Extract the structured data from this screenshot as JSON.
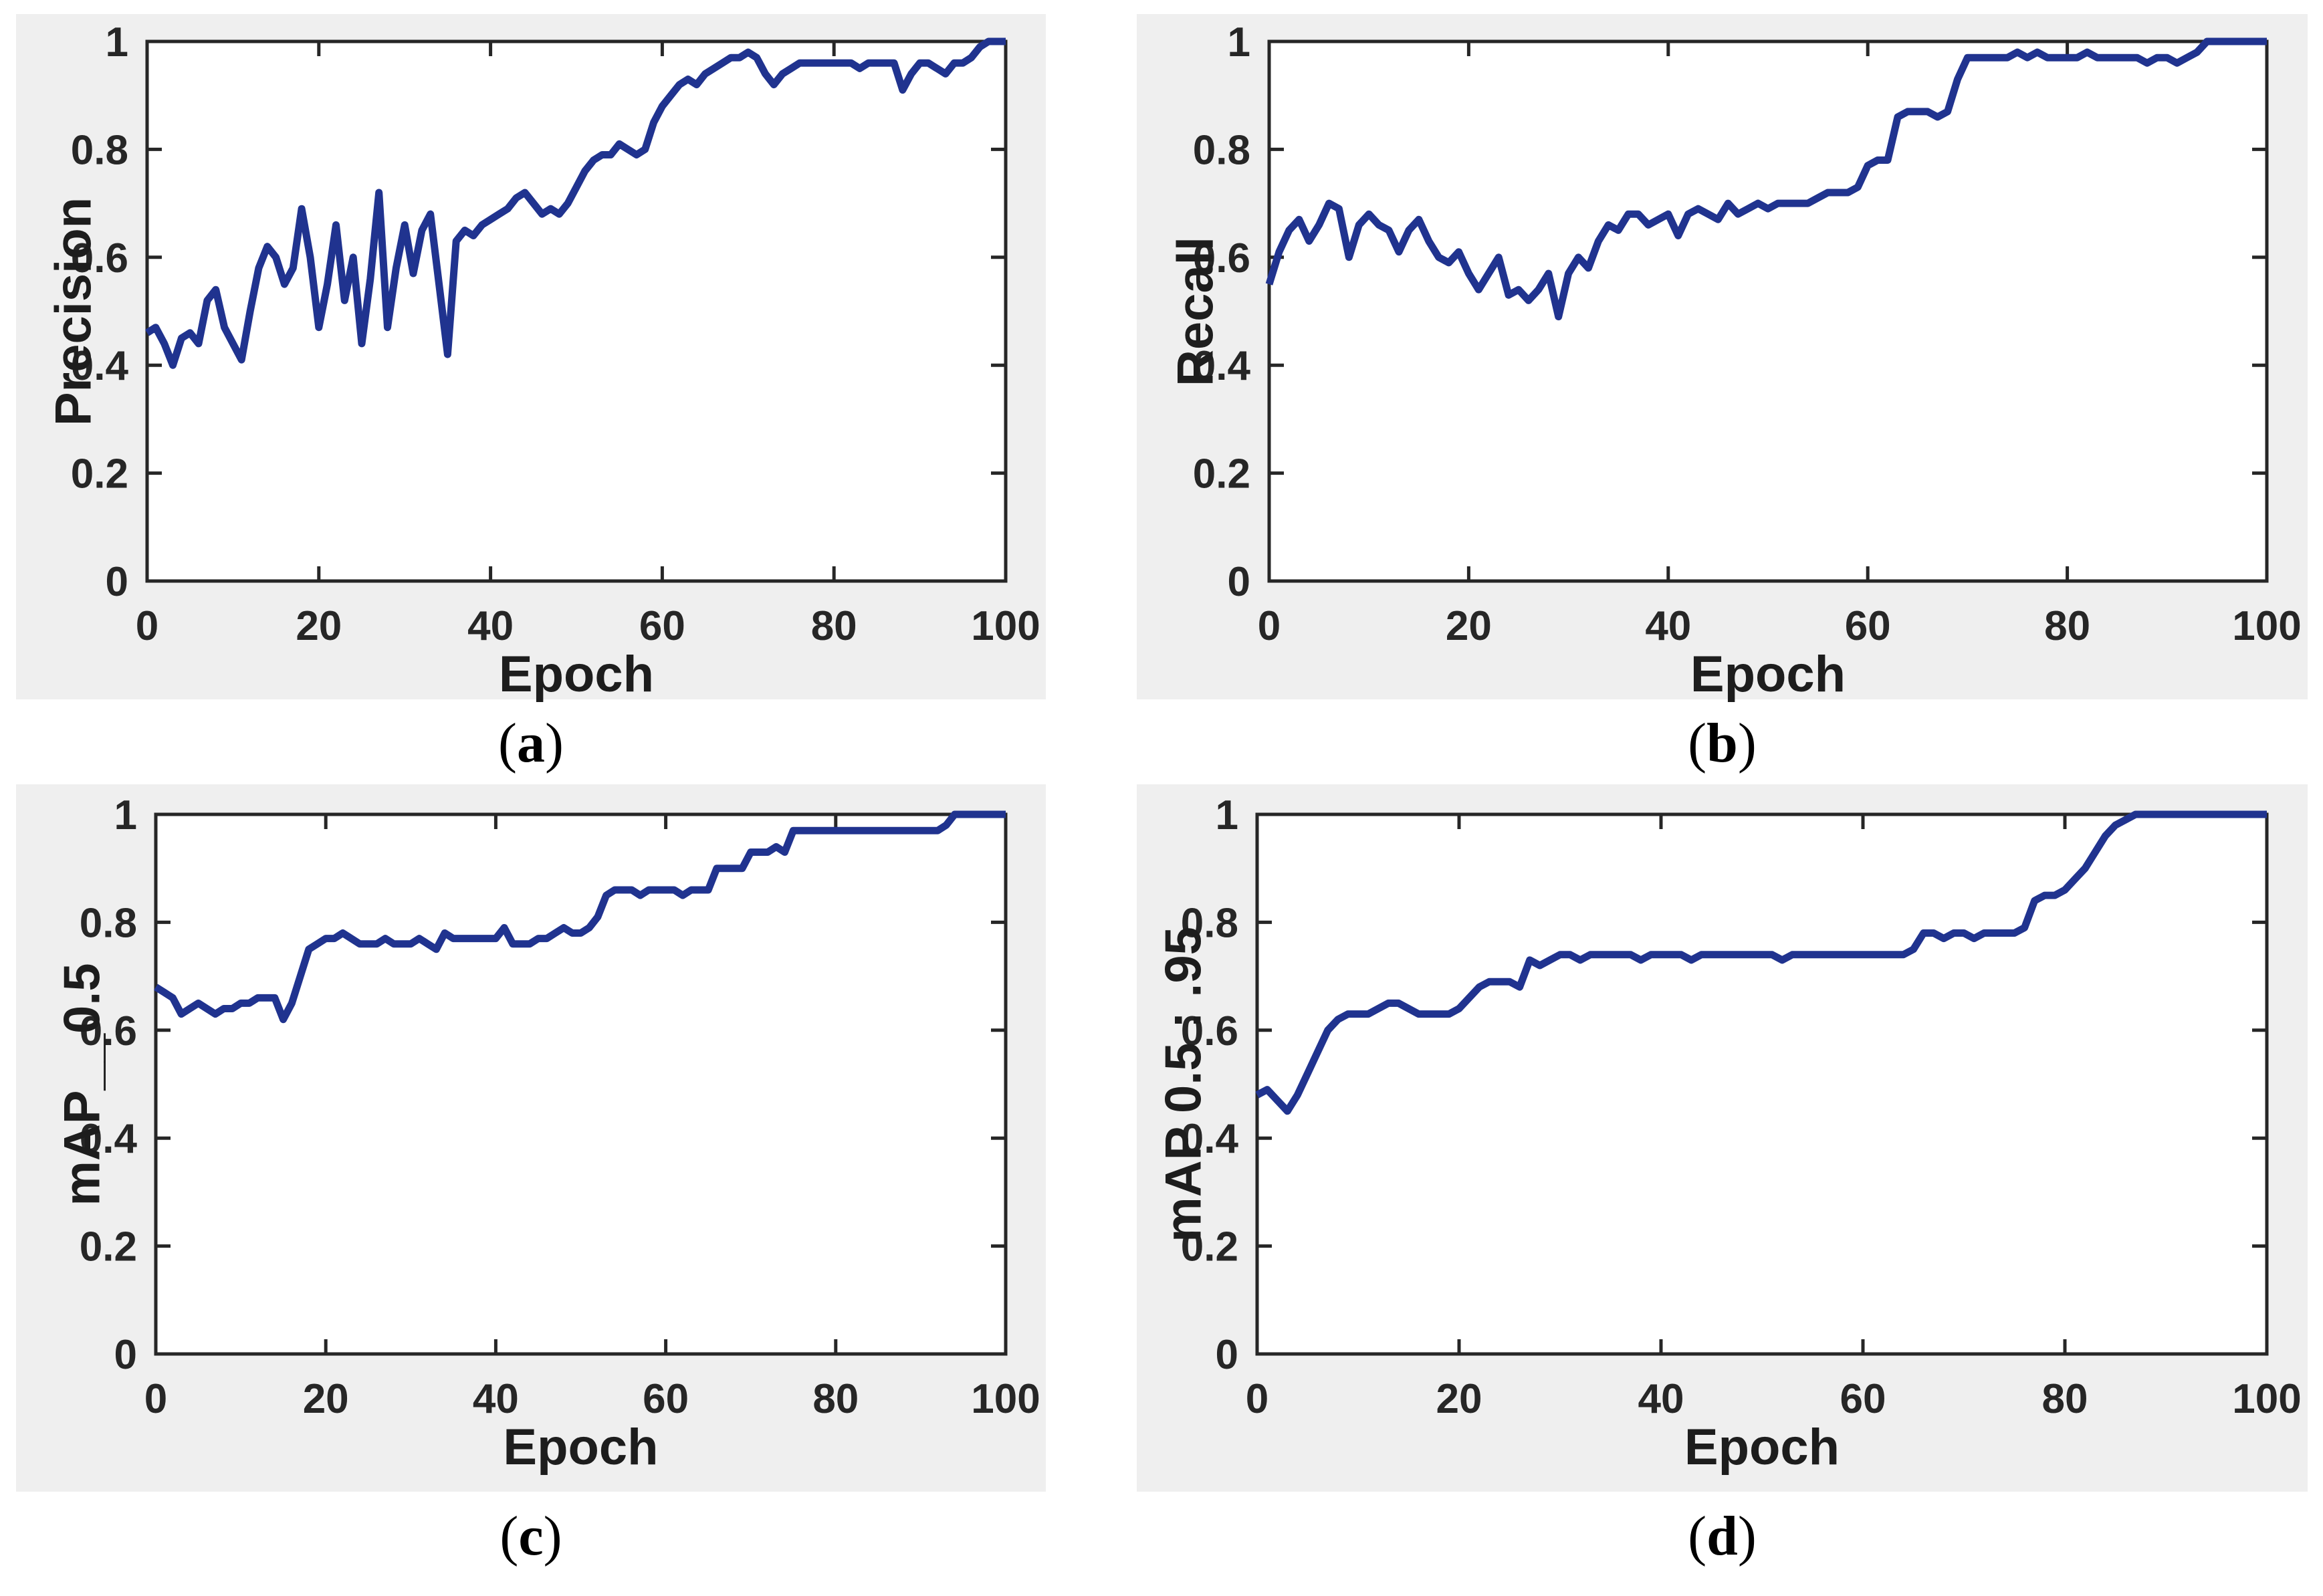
{
  "style": {
    "page_background": "#ffffff",
    "panel_background": "#efefef",
    "plot_background": "#ffffff",
    "axis_color": "#262626",
    "tick_label_color": "#262626",
    "line_color": "#20338f"
  },
  "chart_data": [
    {
      "id": "precision",
      "type": "line",
      "title": "",
      "xlabel": "Epoch",
      "ylabel": "Precision",
      "caption": {
        "open": "(",
        "letter": "a",
        "close": ")"
      },
      "xlim": [
        0,
        100
      ],
      "ylim": [
        0,
        1
      ],
      "xticks": [
        0,
        20,
        40,
        60,
        80,
        100
      ],
      "yticks": [
        0,
        0.2,
        0.4,
        0.6,
        0.8,
        1
      ],
      "grid": false,
      "legend": null,
      "x_start": 0,
      "x_step": 1,
      "values": [
        0.46,
        0.47,
        0.44,
        0.4,
        0.45,
        0.46,
        0.44,
        0.52,
        0.54,
        0.47,
        0.44,
        0.41,
        0.5,
        0.58,
        0.62,
        0.6,
        0.55,
        0.58,
        0.69,
        0.6,
        0.47,
        0.55,
        0.66,
        0.52,
        0.6,
        0.44,
        0.56,
        0.72,
        0.47,
        0.58,
        0.66,
        0.57,
        0.65,
        0.68,
        0.55,
        0.42,
        0.63,
        0.65,
        0.64,
        0.66,
        0.67,
        0.68,
        0.69,
        0.71,
        0.72,
        0.7,
        0.68,
        0.69,
        0.68,
        0.7,
        0.73,
        0.76,
        0.78,
        0.79,
        0.79,
        0.81,
        0.8,
        0.79,
        0.8,
        0.85,
        0.88,
        0.9,
        0.92,
        0.93,
        0.92,
        0.94,
        0.95,
        0.96,
        0.97,
        0.97,
        0.98,
        0.97,
        0.94,
        0.92,
        0.94,
        0.95,
        0.96,
        0.96,
        0.96,
        0.96,
        0.96,
        0.96,
        0.96,
        0.95,
        0.96,
        0.96,
        0.96,
        0.96,
        0.91,
        0.94,
        0.96,
        0.96,
        0.95,
        0.94,
        0.96,
        0.96,
        0.97,
        0.99,
        1.0,
        1.0,
        1.0
      ]
    },
    {
      "id": "recall",
      "type": "line",
      "title": "",
      "xlabel": "Epoch",
      "ylabel": "Recall",
      "caption": {
        "open": "(",
        "letter": "b",
        "close": ")"
      },
      "xlim": [
        0,
        100
      ],
      "ylim": [
        0,
        1
      ],
      "xticks": [
        0,
        20,
        40,
        60,
        80,
        100
      ],
      "yticks": [
        0,
        0.2,
        0.4,
        0.6,
        0.8,
        1
      ],
      "grid": false,
      "legend": null,
      "x_start": 0,
      "x_step": 1,
      "values": [
        0.55,
        0.61,
        0.65,
        0.67,
        0.63,
        0.66,
        0.7,
        0.69,
        0.6,
        0.66,
        0.68,
        0.66,
        0.65,
        0.61,
        0.65,
        0.67,
        0.63,
        0.6,
        0.59,
        0.61,
        0.57,
        0.54,
        0.57,
        0.6,
        0.53,
        0.54,
        0.52,
        0.54,
        0.57,
        0.49,
        0.57,
        0.6,
        0.58,
        0.63,
        0.66,
        0.65,
        0.68,
        0.68,
        0.66,
        0.67,
        0.68,
        0.64,
        0.68,
        0.69,
        0.68,
        0.67,
        0.7,
        0.68,
        0.69,
        0.7,
        0.69,
        0.7,
        0.7,
        0.7,
        0.7,
        0.71,
        0.72,
        0.72,
        0.72,
        0.73,
        0.77,
        0.78,
        0.78,
        0.86,
        0.87,
        0.87,
        0.87,
        0.86,
        0.87,
        0.93,
        0.97,
        0.97,
        0.97,
        0.97,
        0.97,
        0.98,
        0.97,
        0.98,
        0.97,
        0.97,
        0.97,
        0.97,
        0.98,
        0.97,
        0.97,
        0.97,
        0.97,
        0.97,
        0.96,
        0.97,
        0.97,
        0.96,
        0.97,
        0.98,
        1.0,
        1.0,
        1.0,
        1.0,
        1.0,
        1.0,
        1.0
      ]
    },
    {
      "id": "map_05",
      "type": "line",
      "title": "",
      "xlabel": "Epoch",
      "ylabel": "mAP__0.5",
      "caption": {
        "open": "(",
        "letter": "c",
        "close": ")"
      },
      "xlim": [
        0,
        100
      ],
      "ylim": [
        0,
        1
      ],
      "xticks": [
        0,
        20,
        40,
        60,
        80,
        100
      ],
      "yticks": [
        0,
        0.2,
        0.4,
        0.6,
        0.8,
        1
      ],
      "grid": false,
      "legend": null,
      "x_start": 0,
      "x_step": 1,
      "values": [
        0.68,
        0.67,
        0.66,
        0.63,
        0.64,
        0.65,
        0.64,
        0.63,
        0.64,
        0.64,
        0.65,
        0.65,
        0.66,
        0.66,
        0.66,
        0.62,
        0.65,
        0.7,
        0.75,
        0.76,
        0.77,
        0.77,
        0.78,
        0.77,
        0.76,
        0.76,
        0.76,
        0.77,
        0.76,
        0.76,
        0.76,
        0.77,
        0.76,
        0.75,
        0.78,
        0.77,
        0.77,
        0.77,
        0.77,
        0.77,
        0.77,
        0.79,
        0.76,
        0.76,
        0.76,
        0.77,
        0.77,
        0.78,
        0.79,
        0.78,
        0.78,
        0.79,
        0.81,
        0.85,
        0.86,
        0.86,
        0.86,
        0.85,
        0.86,
        0.86,
        0.86,
        0.86,
        0.85,
        0.86,
        0.86,
        0.86,
        0.9,
        0.9,
        0.9,
        0.9,
        0.93,
        0.93,
        0.93,
        0.94,
        0.93,
        0.97,
        0.97,
        0.97,
        0.97,
        0.97,
        0.97,
        0.97,
        0.97,
        0.97,
        0.97,
        0.97,
        0.97,
        0.97,
        0.97,
        0.97,
        0.97,
        0.97,
        0.97,
        0.98,
        1.0,
        1.0,
        1.0,
        1.0,
        1.0,
        1.0,
        1.0
      ]
    },
    {
      "id": "map_05_095",
      "type": "line",
      "title": "",
      "xlabel": "Epoch",
      "ylabel": "mAP 0.5 : .95",
      "caption": {
        "open": "(",
        "letter": "d",
        "close": ")"
      },
      "xlim": [
        0,
        100
      ],
      "ylim": [
        0,
        1
      ],
      "xticks": [
        0,
        20,
        40,
        60,
        80,
        100
      ],
      "yticks": [
        0,
        0.2,
        0.4,
        0.6,
        0.8,
        1
      ],
      "grid": false,
      "legend": null,
      "x_start": 0,
      "x_step": 1,
      "values": [
        0.48,
        0.49,
        0.47,
        0.45,
        0.48,
        0.52,
        0.56,
        0.6,
        0.62,
        0.63,
        0.63,
        0.63,
        0.64,
        0.65,
        0.65,
        0.64,
        0.63,
        0.63,
        0.63,
        0.63,
        0.64,
        0.66,
        0.68,
        0.69,
        0.69,
        0.69,
        0.68,
        0.73,
        0.72,
        0.73,
        0.74,
        0.74,
        0.73,
        0.74,
        0.74,
        0.74,
        0.74,
        0.74,
        0.73,
        0.74,
        0.74,
        0.74,
        0.74,
        0.73,
        0.74,
        0.74,
        0.74,
        0.74,
        0.74,
        0.74,
        0.74,
        0.74,
        0.73,
        0.74,
        0.74,
        0.74,
        0.74,
        0.74,
        0.74,
        0.74,
        0.74,
        0.74,
        0.74,
        0.74,
        0.74,
        0.75,
        0.78,
        0.78,
        0.77,
        0.78,
        0.78,
        0.77,
        0.78,
        0.78,
        0.78,
        0.78,
        0.79,
        0.84,
        0.85,
        0.85,
        0.86,
        0.88,
        0.9,
        0.93,
        0.96,
        0.98,
        0.99,
        1.0,
        1.0,
        1.0,
        1.0,
        1.0,
        1.0,
        1.0,
        1.0,
        1.0,
        1.0,
        1.0,
        1.0,
        1.0,
        1.0
      ]
    }
  ]
}
